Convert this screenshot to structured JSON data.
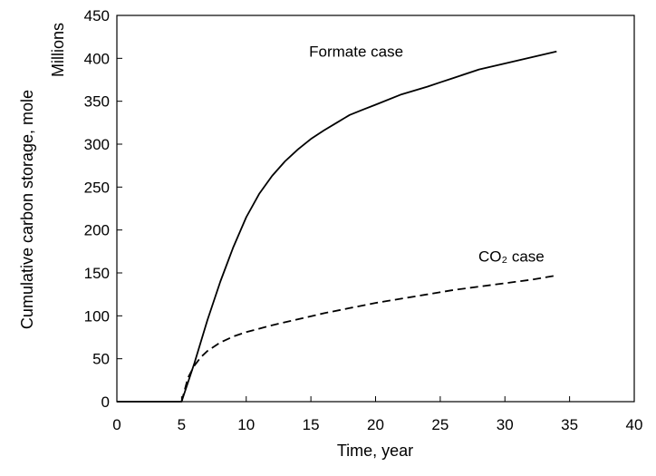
{
  "chart_data": {
    "type": "line",
    "xlabel": "Time, year",
    "ylabel": "Cumulative carbon storage, mole",
    "y_unit_label": "Millions",
    "xlim": [
      0,
      40
    ],
    "ylim": [
      0,
      450
    ],
    "x_ticks": [
      0,
      5,
      10,
      15,
      20,
      25,
      30,
      35,
      40
    ],
    "y_ticks": [
      0,
      50,
      100,
      150,
      200,
      250,
      300,
      350,
      400,
      450
    ],
    "grid": false,
    "legend": "none",
    "series": [
      {
        "name": "Formate case",
        "style": "solid",
        "color": "#000000",
        "x": [
          0,
          5,
          6,
          7,
          8,
          9,
          10,
          11,
          12,
          13,
          14,
          15,
          16,
          17,
          18,
          19,
          20,
          22,
          24,
          25,
          26,
          28,
          30,
          32,
          34
        ],
        "y": [
          0,
          0,
          45,
          95,
          140,
          180,
          215,
          242,
          263,
          280,
          294,
          306,
          316,
          325,
          334,
          340,
          346,
          358,
          367,
          372,
          377,
          387,
          394,
          401,
          408
        ]
      },
      {
        "name": "CO₂ case",
        "style": "dashed",
        "color": "#000000",
        "x": [
          5,
          5.5,
          6,
          6.5,
          7,
          8,
          9,
          10,
          12,
          14,
          16,
          18,
          20,
          22,
          24,
          26,
          28,
          30,
          32,
          34
        ],
        "y": [
          0,
          28,
          42,
          52,
          59,
          69,
          76,
          81,
          89,
          96,
          103,
          109,
          115,
          120,
          125,
          130,
          134,
          138,
          142,
          147
        ]
      }
    ],
    "annotations": [
      {
        "text": "Formate case",
        "x": 18.5,
        "y": 402
      },
      {
        "text": "CO₂ case",
        "x": 30.5,
        "y": 163
      }
    ]
  }
}
